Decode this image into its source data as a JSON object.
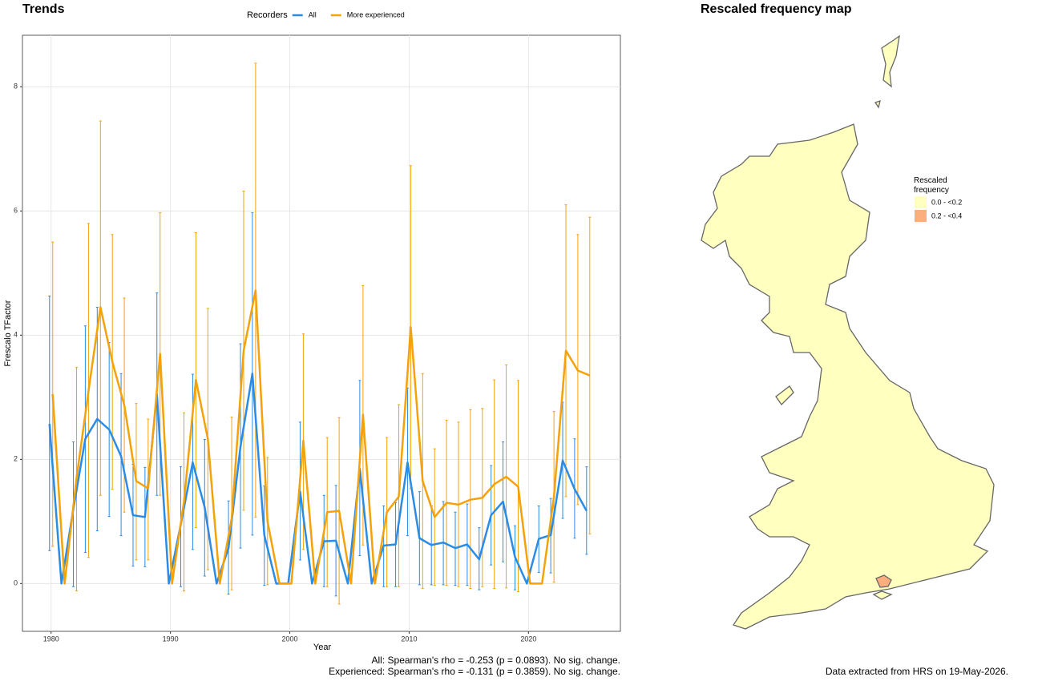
{
  "chart_data": {
    "type": "line",
    "title": "Trends",
    "legend_title": "Recorders",
    "x_label": "Year",
    "y_label": "Frescalo TFactor",
    "notes": [
      "All: Spearman's rho = -0.253 (p = 0.0893). No sig. change.",
      "Experienced: Spearman's rho = -0.131 (p = 0.3859). No sig. change."
    ],
    "x": [
      1980,
      1981,
      1982,
      1983,
      1984,
      1985,
      1986,
      1987,
      1988,
      1989,
      1990,
      1991,
      1992,
      1993,
      1994,
      1995,
      1996,
      1997,
      1998,
      1999,
      2000,
      2001,
      2002,
      2003,
      2004,
      2005,
      2006,
      2007,
      2008,
      2009,
      2010,
      2011,
      2012,
      2013,
      2014,
      2015,
      2016,
      2017,
      2018,
      2019,
      2020,
      2021,
      2022,
      2023,
      2024,
      2025
    ],
    "series": [
      {
        "name": "All",
        "color": "#2b8ce6",
        "values": [
          2.57,
          0,
          1.2,
          2.33,
          2.65,
          2.48,
          2.05,
          1.1,
          1.07,
          3.05,
          0,
          0.95,
          1.95,
          1.23,
          0,
          0.57,
          2.2,
          3.38,
          0.78,
          0,
          0,
          1.48,
          0,
          0.68,
          0.69,
          0,
          1.85,
          0,
          0.61,
          0.63,
          1.95,
          0.73,
          0.62,
          0.66,
          0.57,
          0.63,
          0.39,
          1.1,
          1.32,
          0.43,
          0,
          0.72,
          0.78,
          1.98,
          1.52,
          1.17
        ],
        "lower": [
          0.53,
          null,
          -0.05,
          0.5,
          0.85,
          1.08,
          0.77,
          0.28,
          0.27,
          1.42,
          null,
          -0.05,
          0.55,
          0.12,
          null,
          -0.17,
          0.57,
          0.78,
          -0.03,
          null,
          null,
          0.38,
          null,
          -0.05,
          -0.2,
          null,
          0.45,
          null,
          -0.05,
          -0.05,
          0.77,
          -0.02,
          -0.02,
          -0.02,
          -0.03,
          -0.03,
          -0.1,
          0.3,
          0.35,
          -0.1,
          null,
          0.18,
          0.17,
          1.05,
          0.73,
          0.47
        ],
        "upper": [
          4.63,
          null,
          2.28,
          4.15,
          4.45,
          3.88,
          3.38,
          1.92,
          1.87,
          4.68,
          null,
          1.88,
          3.37,
          2.32,
          null,
          1.33,
          3.86,
          5.97,
          1.57,
          null,
          null,
          2.6,
          null,
          1.42,
          1.58,
          null,
          3.27,
          null,
          1.25,
          1.3,
          3.15,
          1.48,
          1.25,
          1.32,
          1.15,
          1.28,
          0.9,
          1.9,
          2.28,
          0.93,
          null,
          1.25,
          1.37,
          2.92,
          2.33,
          1.88
        ]
      },
      {
        "name": "More experienced",
        "color": "#f5a20a",
        "values": [
          3.05,
          0,
          1.7,
          3.1,
          4.45,
          3.57,
          2.87,
          1.65,
          1.53,
          3.7,
          0,
          1.32,
          3.28,
          2.33,
          0,
          1.05,
          3.75,
          4.72,
          1.0,
          0,
          0,
          2.3,
          0,
          1.15,
          1.17,
          0,
          2.72,
          0,
          1.15,
          1.4,
          4.13,
          1.65,
          1.07,
          1.3,
          1.27,
          1.35,
          1.38,
          1.6,
          1.72,
          1.56,
          0,
          0,
          1.4,
          3.75,
          3.43,
          3.35
        ],
        "lower": [
          0.6,
          null,
          -0.12,
          0.42,
          1.42,
          1.52,
          1.15,
          0.38,
          0.38,
          1.42,
          null,
          -0.12,
          0.9,
          0.22,
          null,
          -0.1,
          1.18,
          1.07,
          -0.02,
          null,
          null,
          0.55,
          null,
          -0.05,
          -0.33,
          null,
          0.62,
          null,
          -0.05,
          -0.05,
          1.53,
          -0.08,
          -0.03,
          -0.03,
          -0.05,
          -0.08,
          -0.05,
          -0.08,
          -0.07,
          -0.13,
          null,
          null,
          0.02,
          1.4,
          1.27,
          0.8
        ],
        "upper": [
          5.5,
          null,
          3.48,
          5.8,
          7.45,
          5.62,
          4.6,
          2.9,
          2.65,
          5.97,
          null,
          2.75,
          5.65,
          4.43,
          null,
          2.68,
          6.32,
          8.38,
          2.03,
          null,
          null,
          4.02,
          null,
          2.35,
          2.67,
          null,
          4.8,
          null,
          2.35,
          2.88,
          6.73,
          3.38,
          2.17,
          2.63,
          2.6,
          2.8,
          2.82,
          3.28,
          3.52,
          3.27,
          null,
          null,
          2.77,
          6.1,
          5.62,
          5.9
        ]
      }
    ],
    "xlim": [
      1977.6,
      2027.7
    ],
    "xticks": [
      1980,
      1990,
      2000,
      2010,
      2020
    ],
    "ylim": [
      -0.77,
      8.83
    ],
    "yticks": [
      0,
      2,
      4,
      6,
      8
    ],
    "grid": true
  },
  "map": {
    "title": "Rescaled frequency map",
    "legend_title": "Rescaled frequency",
    "legend": [
      {
        "label": "0.0 - <0.2",
        "color": "#ffffc0"
      },
      {
        "label": "0.2 - <0.4",
        "color": "#fdae7e"
      }
    ],
    "caption": "Data extracted from HRS on 19-May-2026."
  }
}
